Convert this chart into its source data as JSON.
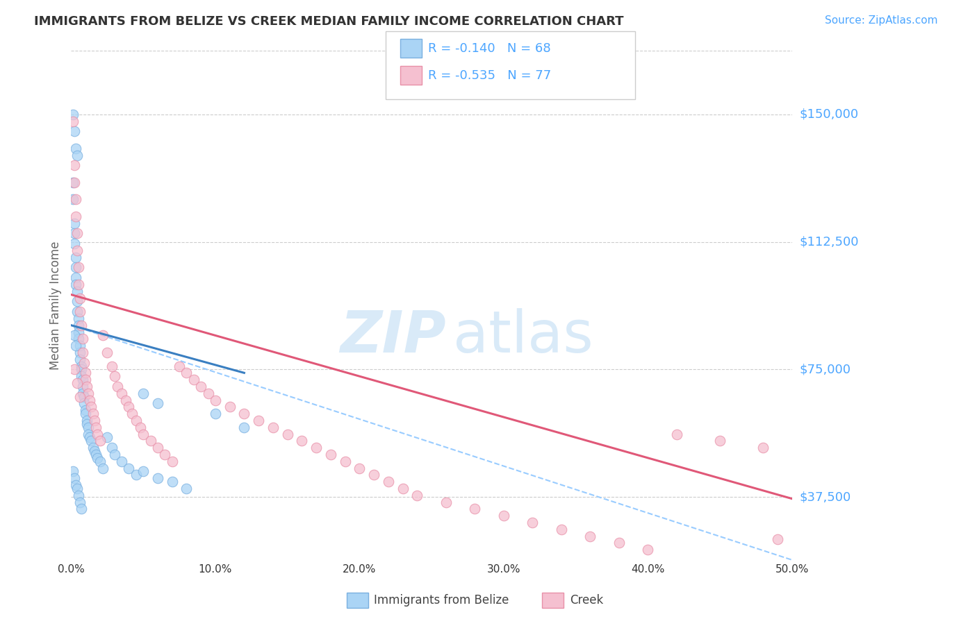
{
  "title": "IMMIGRANTS FROM BELIZE VS CREEK MEDIAN FAMILY INCOME CORRELATION CHART",
  "source_text": "Source: ZipAtlas.com",
  "ylabel": "Median Family Income",
  "xlim": [
    0.0,
    0.5
  ],
  "ylim": [
    18750,
    168750
  ],
  "yticks": [
    37500,
    75000,
    112500,
    150000
  ],
  "ytick_labels": [
    "$37,500",
    "$75,000",
    "$112,500",
    "$150,000"
  ],
  "xticks": [
    0.0,
    0.1,
    0.2,
    0.3,
    0.4,
    0.5
  ],
  "xtick_labels": [
    "0.0%",
    "10.0%",
    "20.0%",
    "30.0%",
    "40.0%",
    "50.0%"
  ],
  "blue_scatter_x": [
    0.001,
    0.001,
    0.002,
    0.002,
    0.002,
    0.003,
    0.003,
    0.003,
    0.003,
    0.004,
    0.004,
    0.004,
    0.005,
    0.005,
    0.005,
    0.005,
    0.006,
    0.006,
    0.006,
    0.007,
    0.007,
    0.007,
    0.008,
    0.008,
    0.008,
    0.009,
    0.009,
    0.01,
    0.01,
    0.011,
    0.011,
    0.012,
    0.012,
    0.013,
    0.014,
    0.015,
    0.016,
    0.017,
    0.018,
    0.02,
    0.022,
    0.025,
    0.028,
    0.03,
    0.035,
    0.04,
    0.045,
    0.05,
    0.06,
    0.07,
    0.08,
    0.001,
    0.002,
    0.003,
    0.004,
    0.005,
    0.006,
    0.007,
    0.001,
    0.002,
    0.003,
    0.004,
    0.05,
    0.06,
    0.1,
    0.12,
    0.002,
    0.003
  ],
  "blue_scatter_y": [
    130000,
    125000,
    118000,
    115000,
    112000,
    108000,
    105000,
    102000,
    100000,
    98000,
    95000,
    92000,
    90000,
    88000,
    86000,
    84000,
    82000,
    80000,
    78000,
    76000,
    75000,
    73000,
    72000,
    70000,
    68000,
    67000,
    65000,
    63000,
    62000,
    60000,
    59000,
    58000,
    56000,
    55000,
    54000,
    52000,
    51000,
    50000,
    49000,
    48000,
    46000,
    55000,
    52000,
    50000,
    48000,
    46000,
    44000,
    45000,
    43000,
    42000,
    40000,
    45000,
    43000,
    41000,
    40000,
    38000,
    36000,
    34000,
    150000,
    145000,
    140000,
    138000,
    68000,
    65000,
    62000,
    58000,
    85000,
    82000
  ],
  "pink_scatter_x": [
    0.001,
    0.002,
    0.002,
    0.003,
    0.003,
    0.004,
    0.004,
    0.005,
    0.005,
    0.006,
    0.006,
    0.007,
    0.008,
    0.008,
    0.009,
    0.01,
    0.01,
    0.011,
    0.012,
    0.013,
    0.014,
    0.015,
    0.016,
    0.017,
    0.018,
    0.02,
    0.022,
    0.025,
    0.028,
    0.03,
    0.032,
    0.035,
    0.038,
    0.04,
    0.042,
    0.045,
    0.048,
    0.05,
    0.055,
    0.06,
    0.065,
    0.07,
    0.075,
    0.08,
    0.085,
    0.09,
    0.095,
    0.1,
    0.11,
    0.12,
    0.13,
    0.14,
    0.15,
    0.16,
    0.17,
    0.18,
    0.19,
    0.2,
    0.21,
    0.22,
    0.23,
    0.24,
    0.26,
    0.28,
    0.3,
    0.32,
    0.34,
    0.36,
    0.38,
    0.4,
    0.42,
    0.45,
    0.48,
    0.49,
    0.002,
    0.004,
    0.006
  ],
  "pink_scatter_y": [
    148000,
    135000,
    130000,
    125000,
    120000,
    115000,
    110000,
    105000,
    100000,
    96000,
    92000,
    88000,
    84000,
    80000,
    77000,
    74000,
    72000,
    70000,
    68000,
    66000,
    64000,
    62000,
    60000,
    58000,
    56000,
    54000,
    85000,
    80000,
    76000,
    73000,
    70000,
    68000,
    66000,
    64000,
    62000,
    60000,
    58000,
    56000,
    54000,
    52000,
    50000,
    48000,
    76000,
    74000,
    72000,
    70000,
    68000,
    66000,
    64000,
    62000,
    60000,
    58000,
    56000,
    54000,
    52000,
    50000,
    48000,
    46000,
    44000,
    42000,
    40000,
    38000,
    36000,
    34000,
    32000,
    30000,
    28000,
    26000,
    24000,
    22000,
    56000,
    54000,
    52000,
    25000,
    75000,
    71000,
    67000
  ],
  "blue_line_x": [
    0.0,
    0.12
  ],
  "blue_line_y": [
    88000,
    74000
  ],
  "pink_line_x": [
    0.0,
    0.5
  ],
  "pink_line_y": [
    97000,
    37000
  ],
  "dashed_line_x": [
    0.0,
    0.5
  ],
  "dashed_line_y": [
    88000,
    19000
  ],
  "bg_color": "#ffffff",
  "grid_color": "#cccccc",
  "title_color": "#333333",
  "axis_label_color": "#666666",
  "tick_color_y": "#4da6ff",
  "tick_color_x": "#333333",
  "blue_dot_color": "#aad4f5",
  "blue_dot_edge": "#7ab0e0",
  "pink_dot_color": "#f5c0d0",
  "pink_dot_edge": "#e890a8",
  "blue_line_color": "#3a7fc1",
  "pink_line_color": "#e05878",
  "dashed_line_color": "#99ccff",
  "source_color": "#4da6ff",
  "watermark_color": "#d5e8f8",
  "legend_entry_1": "R = -0.140   N = 68",
  "legend_entry_2": "R = -0.535   N = 77",
  "bottom_label_1": "Immigrants from Belize",
  "bottom_label_2": "Creek"
}
